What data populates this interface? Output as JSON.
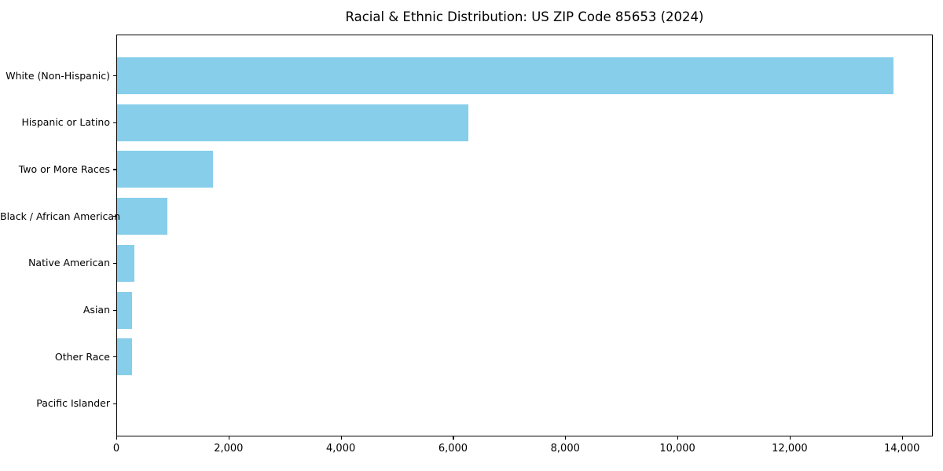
{
  "figure": {
    "background": "#ffffff"
  },
  "chart_data": {
    "type": "bar",
    "orientation": "horizontal",
    "title": "Racial & Ethnic Distribution: US ZIP Code 85653 (2024)",
    "categories": [
      "White (Non-Hispanic)",
      "Hispanic or Latino",
      "Two or More Races",
      "Black / African American",
      "Native American",
      "Asian",
      "Other Race",
      "Pacific Islander"
    ],
    "values": [
      13835,
      6255,
      1715,
      900,
      315,
      270,
      270,
      0
    ],
    "xlabel": "",
    "ylabel": "",
    "xlim": [
      0,
      14550
    ],
    "xticks": [
      0,
      2000,
      4000,
      6000,
      8000,
      10000,
      12000,
      14000
    ],
    "xtick_labels": [
      "0",
      "2,000",
      "4,000",
      "6,000",
      "8,000",
      "10,000",
      "12,000",
      "14,000"
    ],
    "bar_color": "#87CEEB",
    "text_color": "#000000",
    "grid": false,
    "legend": null
  }
}
